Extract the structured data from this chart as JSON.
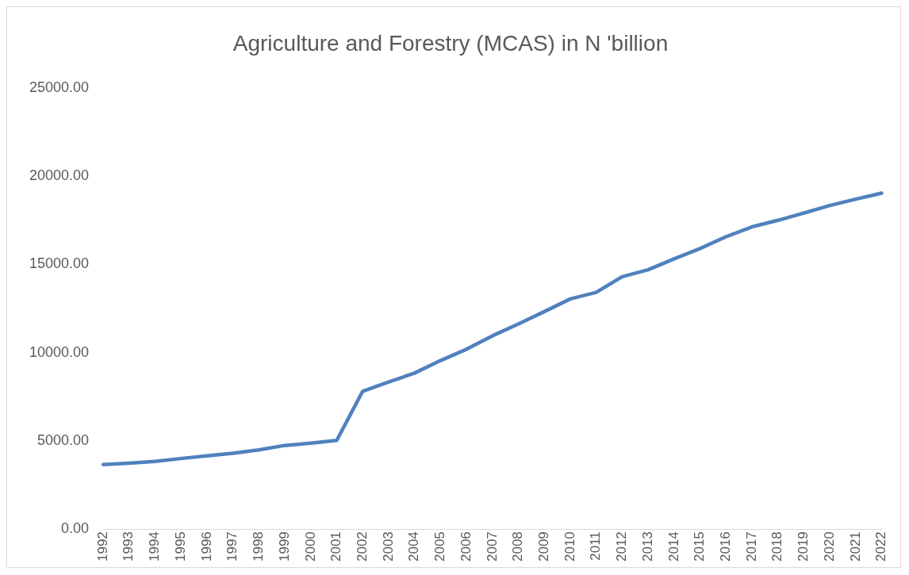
{
  "chart_data": {
    "type": "line",
    "title": "Agriculture and Forestry (MCAS) in N 'billion",
    "categories": [
      "1992",
      "1993",
      "1994",
      "1995",
      "1996",
      "1997",
      "1998",
      "1999",
      "2000",
      "2001",
      "2002",
      "2003",
      "2004",
      "2005",
      "2006",
      "2007",
      "2008",
      "2009",
      "2010",
      "2011",
      "2012",
      "2013",
      "2014",
      "2015",
      "2016",
      "2017",
      "2018",
      "2019",
      "2020",
      "2021",
      "2022"
    ],
    "series": [
      {
        "color": "#4f81bd",
        "values": [
          3660,
          3740,
          3840,
          4000,
          4150,
          4300,
          4490,
          4740,
          4870,
          5030,
          7810,
          8330,
          8840,
          9550,
          10190,
          10950,
          11620,
          12320,
          13040,
          13410,
          14300,
          14690,
          15310,
          15890,
          16560,
          17120,
          17490,
          17900,
          18330,
          18690,
          19030
        ]
      }
    ],
    "ylim": [
      0,
      25000
    ],
    "yticks": [
      {
        "value": 0,
        "label": "0.00"
      },
      {
        "value": 5000,
        "label": "5000.00"
      },
      {
        "value": 10000,
        "label": "10000.00"
      },
      {
        "value": 15000,
        "label": "15000.00"
      },
      {
        "value": 20000,
        "label": "20000.00"
      },
      {
        "value": 25000,
        "label": "25000.00"
      }
    ],
    "grid": false,
    "legend": false,
    "marker": "none",
    "line_style": "solid"
  }
}
